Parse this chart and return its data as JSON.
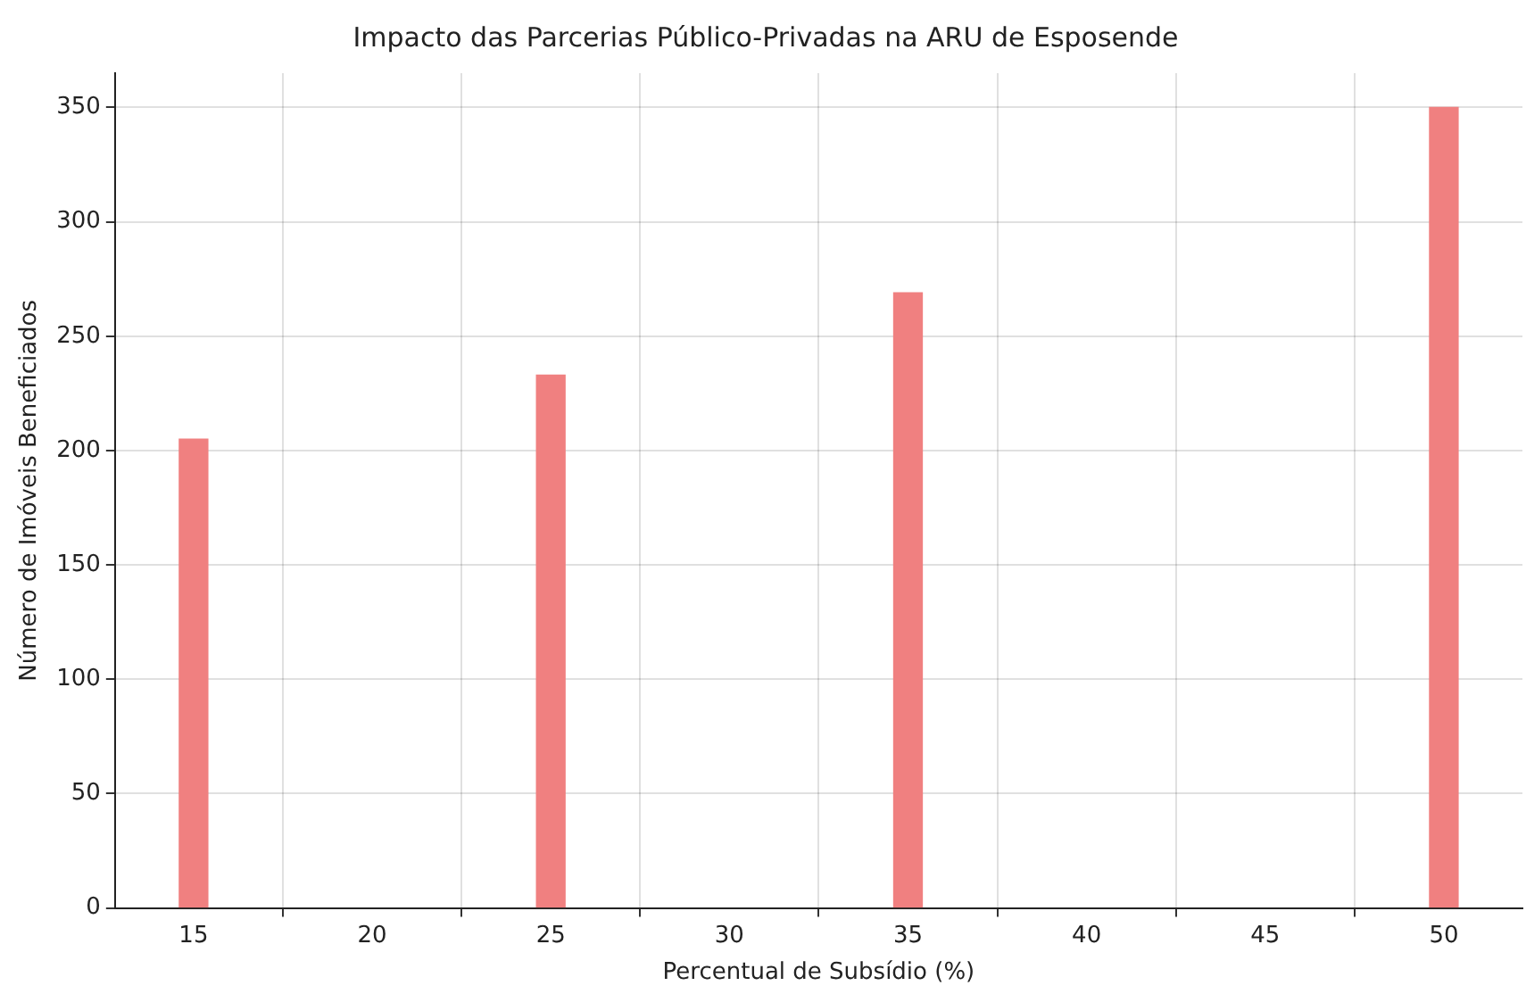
{
  "chart_data": {
    "type": "bar",
    "title": "Impacto das Parcerias Público-Privadas na ARU de Esposende",
    "xlabel": "Percentual de Subsídio (%)",
    "ylabel": "Número de Imóveis Beneficiados",
    "x": [
      15,
      25,
      35,
      50
    ],
    "values": [
      205,
      233,
      269,
      350
    ],
    "color": "#f08080",
    "xlim": [
      12.8,
      52.2
    ],
    "xticks": [
      15,
      20,
      25,
      30,
      35,
      40,
      45,
      50
    ],
    "ylim": [
      0,
      365
    ],
    "yticks": [
      0,
      50,
      100,
      150,
      200,
      250,
      300,
      350
    ],
    "grid": true
  }
}
